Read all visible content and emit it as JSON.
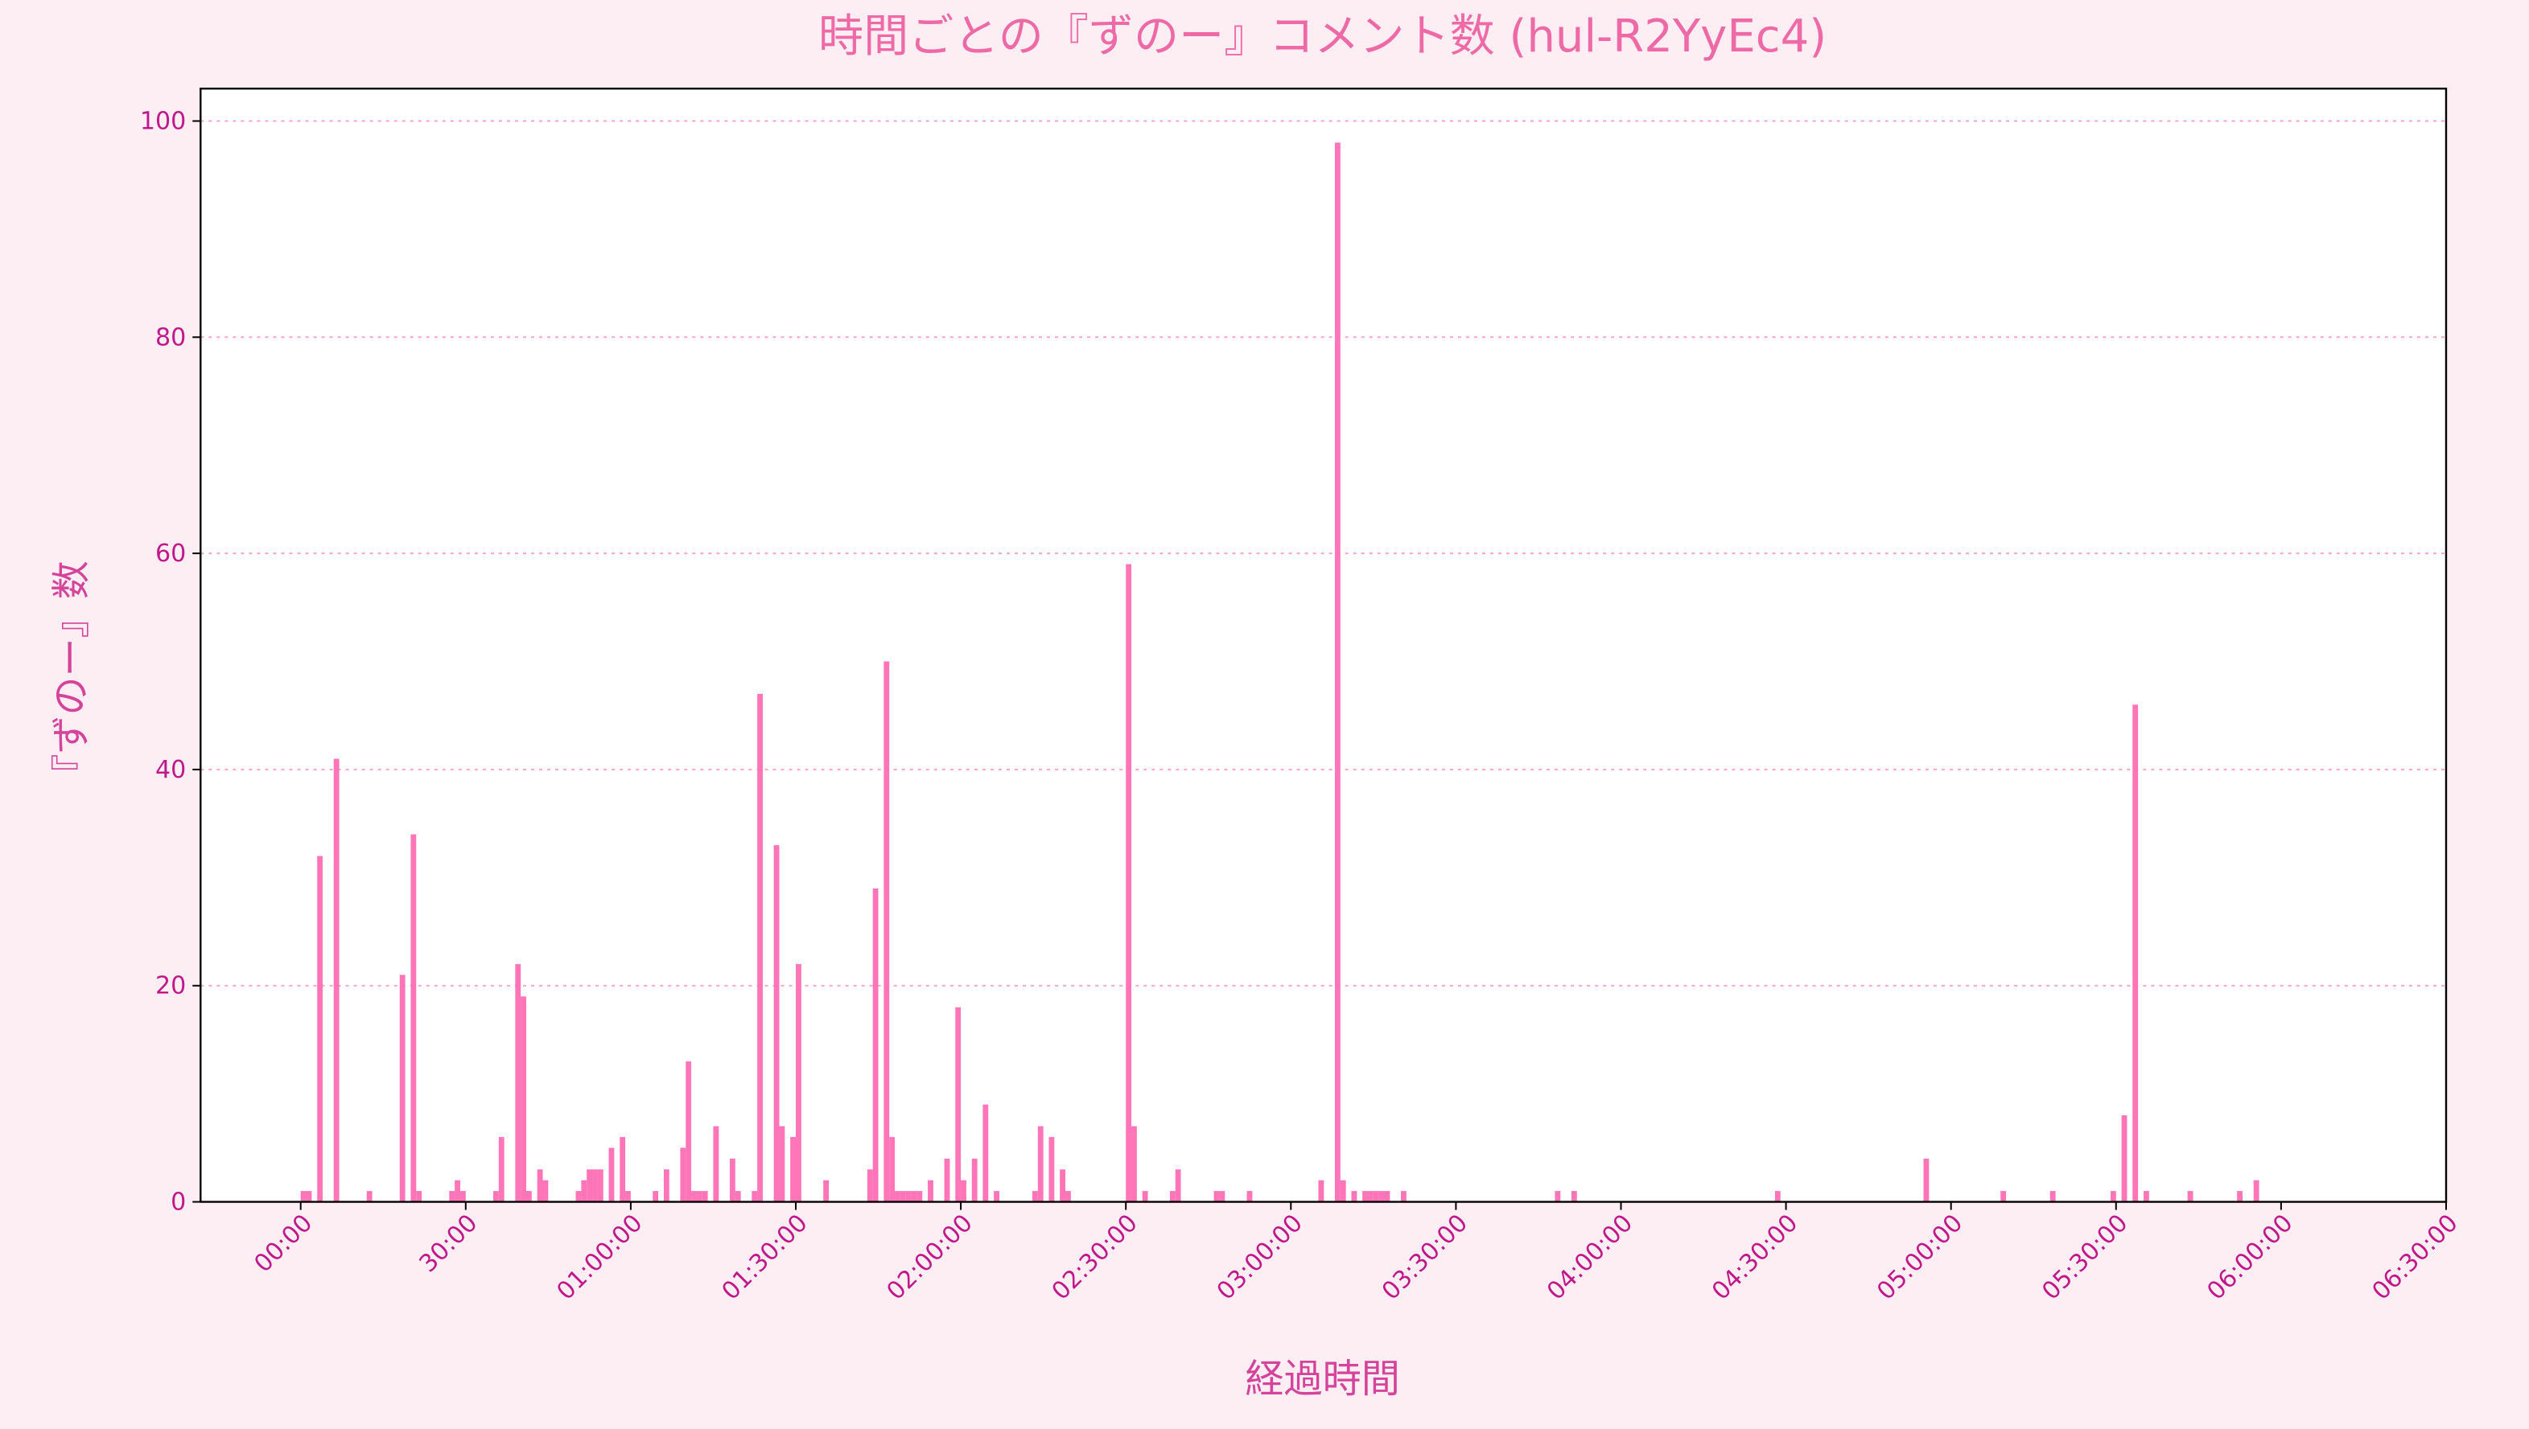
{
  "chart_data": {
    "type": "bar",
    "title": "時間ごとの『ずのー』コメント数 (hul-R2YyEc4)",
    "x_label": "経過時間",
    "y_label": "『ずのー』数",
    "color": "#ff6eb4",
    "grid": true,
    "xlim": [
      -18.2,
      390
    ],
    "ylim": [
      0,
      103
    ],
    "yticks": [
      0,
      20,
      40,
      60,
      80,
      100
    ],
    "xticks": [
      {
        "value": 0,
        "label": "00:00"
      },
      {
        "value": 30,
        "label": "30:00"
      },
      {
        "value": 60,
        "label": "01:00:00"
      },
      {
        "value": 90,
        "label": "01:30:00"
      },
      {
        "value": 120,
        "label": "02:00:00"
      },
      {
        "value": 150,
        "label": "02:30:00"
      },
      {
        "value": 180,
        "label": "03:00:00"
      },
      {
        "value": 210,
        "label": "03:30:00"
      },
      {
        "value": 240,
        "label": "04:00:00"
      },
      {
        "value": 270,
        "label": "04:30:00"
      },
      {
        "value": 300,
        "label": "05:00:00"
      },
      {
        "value": 330,
        "label": "05:30:00"
      },
      {
        "value": 360,
        "label": "06:00:00"
      },
      {
        "value": 390,
        "label": "06:30:00"
      }
    ],
    "x": [
      0,
      1,
      3,
      6,
      12,
      18,
      20,
      21,
      27,
      28,
      29,
      35,
      36,
      39,
      40,
      41,
      43,
      44,
      50,
      51,
      52,
      53,
      54,
      56,
      58,
      59,
      64,
      66,
      69,
      70,
      71,
      72,
      73,
      75,
      78,
      79,
      82,
      83,
      86,
      87,
      89,
      90,
      95,
      103,
      104,
      106,
      107,
      108,
      109,
      110,
      111,
      112,
      114,
      117,
      119,
      120,
      122,
      124,
      126,
      133,
      134,
      136,
      138,
      139,
      150,
      151,
      153,
      158,
      159,
      166,
      167,
      172,
      185,
      188,
      189,
      191,
      193,
      194,
      195,
      196,
      197,
      200,
      228,
      231,
      268,
      295,
      309,
      318,
      329,
      331,
      333,
      335,
      343,
      352,
      355
    ],
    "values": [
      1,
      1,
      32,
      41,
      1,
      21,
      34,
      1,
      1,
      2,
      1,
      1,
      6,
      22,
      19,
      1,
      3,
      2,
      1,
      2,
      3,
      3,
      3,
      5,
      6,
      1,
      1,
      3,
      5,
      13,
      1,
      1,
      1,
      7,
      4,
      1,
      1,
      47,
      33,
      7,
      6,
      22,
      2,
      3,
      29,
      50,
      6,
      1,
      1,
      1,
      1,
      1,
      2,
      4,
      18,
      2,
      4,
      9,
      1,
      1,
      7,
      6,
      3,
      1,
      59,
      7,
      1,
      1,
      3,
      1,
      1,
      1,
      2,
      98,
      2,
      1,
      1,
      1,
      1,
      1,
      1,
      1,
      1,
      1,
      1,
      4,
      1,
      1,
      1,
      8,
      46,
      1,
      1,
      1,
      2
    ]
  }
}
